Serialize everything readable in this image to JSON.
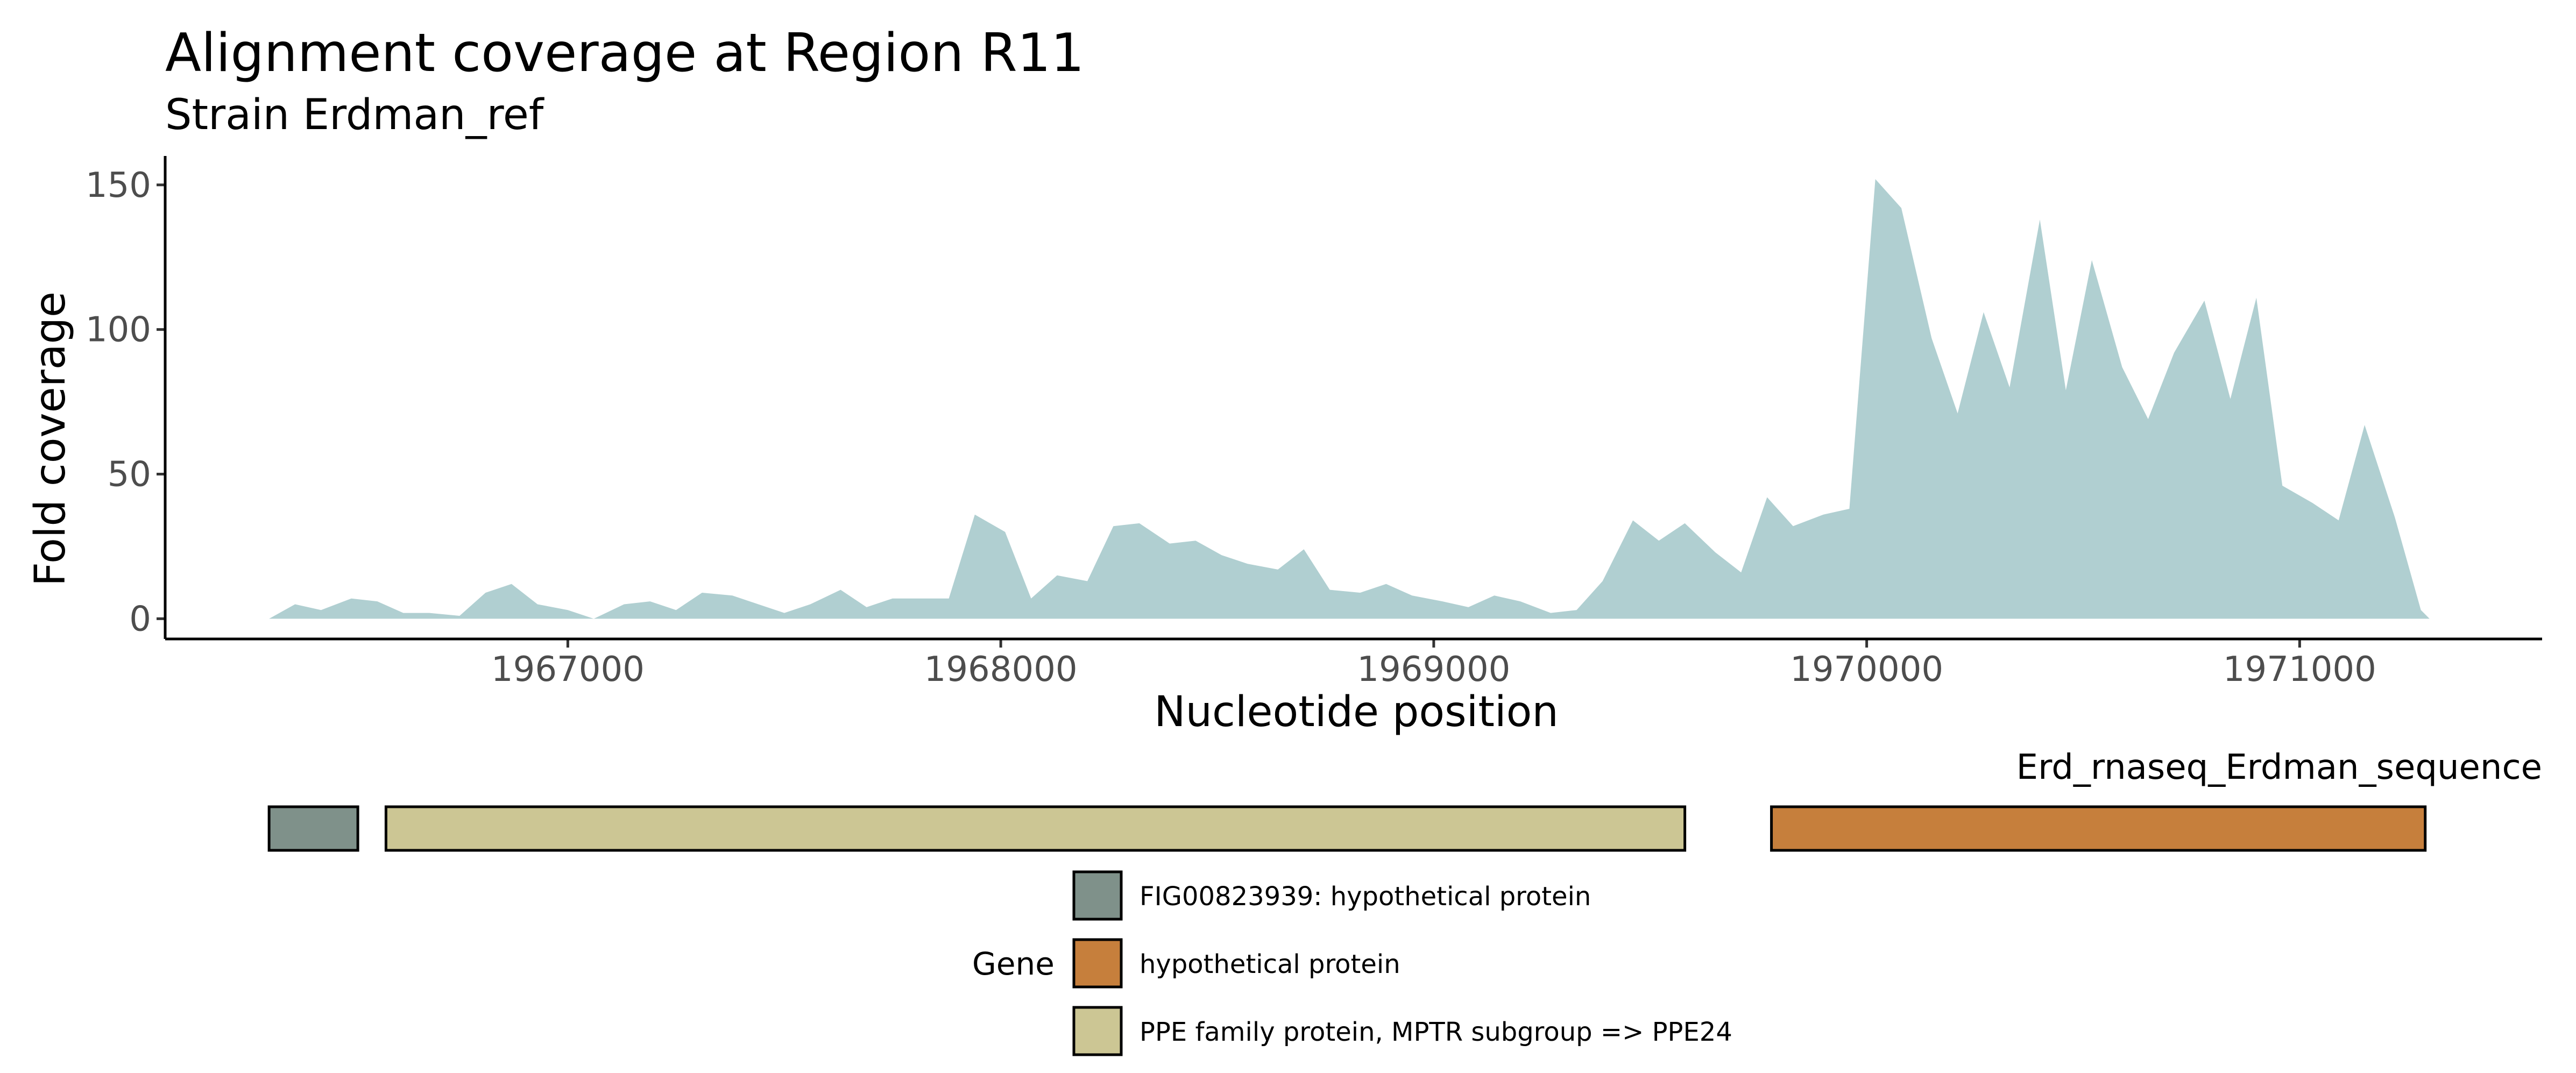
{
  "colors": {
    "coverage_fill": "#b0cfd1",
    "axis": "#000000",
    "tick_text": "#4d4d4d"
  },
  "chart_data": {
    "type": "area",
    "title": "Alignment coverage at Region R11",
    "subtitle": "Strain Erdman_ref",
    "xlabel": "Nucleotide position",
    "ylabel": "Fold coverage",
    "xlim": [
      1966070,
      1971560
    ],
    "ylim": [
      -7,
      160
    ],
    "x_ticks": [
      1967000,
      1968000,
      1969000,
      1970000,
      1971000
    ],
    "x_tick_labels": [
      "1967000",
      "1968000",
      "1969000",
      "1970000",
      "1971000"
    ],
    "y_ticks": [
      0,
      50,
      100,
      150
    ],
    "y_tick_labels": [
      "0",
      "50",
      "100",
      "150"
    ],
    "grid": false,
    "series": [
      {
        "x": [
          1966310,
          1966370,
          1966430,
          1966500,
          1966560,
          1966620,
          1966680,
          1966750,
          1966810,
          1966870,
          1966930,
          1967000,
          1967060,
          1967130,
          1967190,
          1967250,
          1967310,
          1967380,
          1967440,
          1967500,
          1967560,
          1967630,
          1967690,
          1967750,
          1967820,
          1967880,
          1967940,
          1968010,
          1968070,
          1968130,
          1968200,
          1968260,
          1968320,
          1968390,
          1968450,
          1968510,
          1968570,
          1968640,
          1968700,
          1968760,
          1968830,
          1968890,
          1968950,
          1969020,
          1969080,
          1969140,
          1969200,
          1969270,
          1969330,
          1969390,
          1969460,
          1969520,
          1969580,
          1969650,
          1969710,
          1969770,
          1969830,
          1969900,
          1969960,
          1970020,
          1970080,
          1970150,
          1970210,
          1970270,
          1970330,
          1970400,
          1970460,
          1970520,
          1970590,
          1970650,
          1970710,
          1970780,
          1970840,
          1970900,
          1970960,
          1971030,
          1971090,
          1971150,
          1971220,
          1971280,
          1971300
        ],
        "values": [
          0,
          5,
          3,
          7,
          6,
          2,
          2,
          1,
          9,
          12,
          5,
          3,
          0,
          5,
          6,
          3,
          9,
          8,
          5,
          2,
          5,
          10,
          4,
          7,
          7,
          7,
          36,
          30,
          7,
          15,
          13,
          32,
          33,
          26,
          27,
          22,
          19,
          17,
          24,
          10,
          9,
          12,
          8,
          6,
          4,
          8,
          6,
          2,
          3,
          13,
          34,
          27,
          33,
          23,
          16,
          42,
          32,
          36,
          38,
          152,
          142,
          97,
          71,
          106,
          80,
          138,
          79,
          124,
          87,
          69,
          92,
          110,
          76,
          111,
          46,
          40,
          34,
          67,
          35,
          3,
          0
        ]
      }
    ]
  },
  "gene_track": {
    "label": "Erd_rnaseq_Erdman_sequence",
    "genes": [
      {
        "start": 1966310,
        "end": 1966515,
        "color": "#7f918a",
        "product": "FIG00823939: hypothetical protein"
      },
      {
        "start": 1966580,
        "end": 1969580,
        "color": "#ccc694",
        "product": "PPE family protein, MPTR subgroup => PPE24"
      },
      {
        "start": 1969780,
        "end": 1971290,
        "color": "#c67f3c",
        "product": "hypothetical protein"
      }
    ]
  },
  "legend": {
    "title": "Gene",
    "items": [
      {
        "label": "FIG00823939: hypothetical protein",
        "color": "#7f918a"
      },
      {
        "label": "hypothetical protein",
        "color": "#c67f3c"
      },
      {
        "label": "PPE family protein, MPTR subgroup => PPE24",
        "color": "#ccc694"
      }
    ]
  }
}
